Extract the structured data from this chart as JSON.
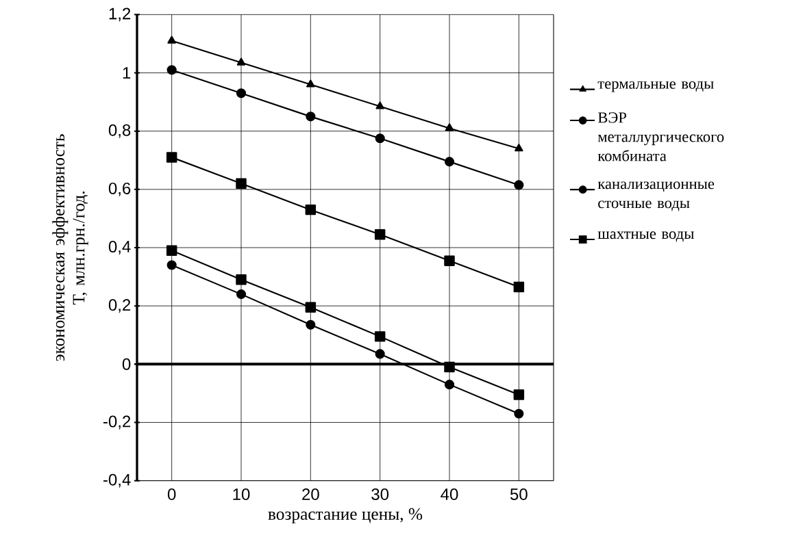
{
  "chart_data": {
    "type": "line",
    "xlabel": "возрастание цены, %",
    "ylabel": "экономическая эффективность Т, млн.грн./год.",
    "categories": [
      "0",
      "10",
      "20",
      "30",
      "40",
      "50"
    ],
    "series": [
      {
        "name": "термальные воды",
        "color": "#000000",
        "marker": "triangle",
        "values": [
          1.11,
          1.035,
          0.96,
          0.885,
          0.81,
          0.74
        ]
      },
      {
        "name": "ВЭР металлургического комбината",
        "color": "#000000",
        "marker": "circle",
        "values": [
          0.34,
          0.24,
          0.135,
          0.035,
          -0.07,
          -0.17
        ]
      },
      {
        "name": "канализационные сточные воды",
        "color": "#000000",
        "marker": "circle",
        "values": [
          1.01,
          0.93,
          0.85,
          0.775,
          0.695,
          0.615
        ]
      },
      {
        "name": "шахтные воды",
        "color": "#000000",
        "marker": "square",
        "values": [
          0.71,
          0.62,
          0.53,
          0.445,
          0.355,
          0.265
        ]
      },
      {
        "color": "#000000",
        "marker": "square",
        "values": [
          0.39,
          0.29,
          0.195,
          0.095,
          -0.01,
          -0.105
        ]
      }
    ],
    "ylim": [
      -0.4,
      1.2
    ],
    "yticks": [
      {
        "value": -0.4,
        "label": "-0,4"
      },
      {
        "value": -0.2,
        "label": "-0,2"
      },
      0,
      {
        "value": 0.2,
        "label": "0,2"
      },
      {
        "value": 0.4,
        "label": "0,4"
      },
      {
        "value": 0.6,
        "label": "0,6"
      },
      {
        "value": 0.8,
        "label": "0,8"
      },
      1,
      {
        "value": 1.2,
        "label": "1,2"
      }
    ],
    "grid": true,
    "legend": "right",
    "line_style": "solid"
  }
}
